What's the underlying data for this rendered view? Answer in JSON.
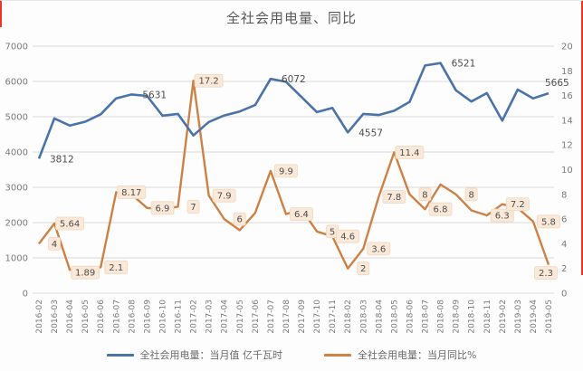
{
  "title": "全社会用电量、同比",
  "colors": {
    "line_value": "#4a73a8",
    "line_yoy": "#ce8144",
    "gridline": "#d9d9d9",
    "axis_text": "#7a7a7a",
    "data_label_text": "#4d4d4d",
    "yoy_label_bg": "#fae9d8",
    "yoy_label_border": "#f0d8bd",
    "red_crop_mark": "#ee3424"
  },
  "chart_data": {
    "type": "line",
    "categories": [
      "2016-02",
      "2016-03",
      "2016-04",
      "2016-05",
      "2016-06",
      "2016-07",
      "2016-08",
      "2016-09",
      "2016-10",
      "2016-11",
      "2017-02",
      "2017-03",
      "2017-04",
      "2017-05",
      "2017-06",
      "2017-07",
      "2017-08",
      "2017-09",
      "2017-10",
      "2017-11",
      "2018-02",
      "2018-03",
      "2018-04",
      "2018-05",
      "2018-06",
      "2018-07",
      "2018-08",
      "2018-09",
      "2018-10",
      "2018-11",
      "2019-02",
      "2019-03",
      "2019-04",
      "2019-05"
    ],
    "series": [
      {
        "name": "全社会用电量：当月值 亿千瓦时",
        "axis": "left",
        "values": [
          3812,
          4950,
          4750,
          4860,
          5070,
          5520,
          5631,
          5590,
          5030,
          5080,
          4468,
          4850,
          5035,
          5150,
          5330,
          6072,
          5990,
          5560,
          5130,
          5250,
          4557,
          5080,
          5050,
          5170,
          5420,
          6450,
          6521,
          5750,
          5430,
          5670,
          4890,
          5770,
          5520,
          5665
        ]
      },
      {
        "name": "全社会用电量：当月同比%",
        "axis": "right",
        "values": [
          4,
          5.64,
          1.89,
          1.9,
          2.1,
          8.17,
          8,
          6.9,
          6.8,
          7,
          17.2,
          7.9,
          6,
          5.1,
          6.5,
          9.9,
          6.4,
          6.8,
          5,
          4.6,
          2,
          3.6,
          7.8,
          11.4,
          8,
          6.8,
          8.8,
          8,
          6.7,
          6.3,
          7.2,
          6.9,
          5.8,
          2.3
        ]
      }
    ],
    "left_axis": {
      "min": 0,
      "max": 7000,
      "step": 1000,
      "ticks": [
        "7000",
        "6000",
        "5000",
        "4000",
        "3000",
        "2000",
        "1000",
        "0"
      ]
    },
    "right_axis": {
      "min": 0,
      "max": 20,
      "step": 2,
      "ticks": [
        "20",
        "18",
        "16",
        "14",
        "12",
        "10",
        "8",
        "6",
        "4",
        "2",
        "0"
      ]
    },
    "grid": "horizontal-left-axis",
    "legend_position": "bottom",
    "point_labels": {
      "value_series": [
        {
          "index": 0,
          "text": "3812"
        },
        {
          "index": 6,
          "text": "5631"
        },
        {
          "index": 15,
          "text": "6072"
        },
        {
          "index": 20,
          "text": "4557"
        },
        {
          "index": 26,
          "text": "6521"
        },
        {
          "index": 33,
          "text": "5665",
          "dx": -4,
          "dy": -8
        }
      ],
      "yoy_series": [
        {
          "index": 0,
          "text": "4"
        },
        {
          "index": 1,
          "text": "5.64"
        },
        {
          "index": 2,
          "text": "1.89",
          "dy": 3
        },
        {
          "index": 4,
          "text": "2.1"
        },
        {
          "index": 5,
          "text": "8.17"
        },
        {
          "index": 7,
          "text": "6.9"
        },
        {
          "index": 9,
          "text": "7"
        },
        {
          "index": 10,
          "text": "17.2"
        },
        {
          "index": 11,
          "text": "7.9"
        },
        {
          "index": 12,
          "text": "6"
        },
        {
          "index": 15,
          "text": "9.9"
        },
        {
          "index": 16,
          "text": "6.4"
        },
        {
          "index": 18,
          "text": "5"
        },
        {
          "index": 19,
          "text": "4.6"
        },
        {
          "index": 20,
          "text": "2"
        },
        {
          "index": 21,
          "text": "3.6"
        },
        {
          "index": 22,
          "text": "7.8"
        },
        {
          "index": 23,
          "text": "11.4"
        },
        {
          "index": 24,
          "text": "8"
        },
        {
          "index": 25,
          "text": "6.8"
        },
        {
          "index": 27,
          "text": "8"
        },
        {
          "index": 29,
          "text": "6.3"
        },
        {
          "index": 30,
          "text": "7.2"
        },
        {
          "index": 32,
          "text": "5.8"
        },
        {
          "index": 33,
          "text": "2.3",
          "dx": -3,
          "dy": 9
        }
      ]
    }
  }
}
